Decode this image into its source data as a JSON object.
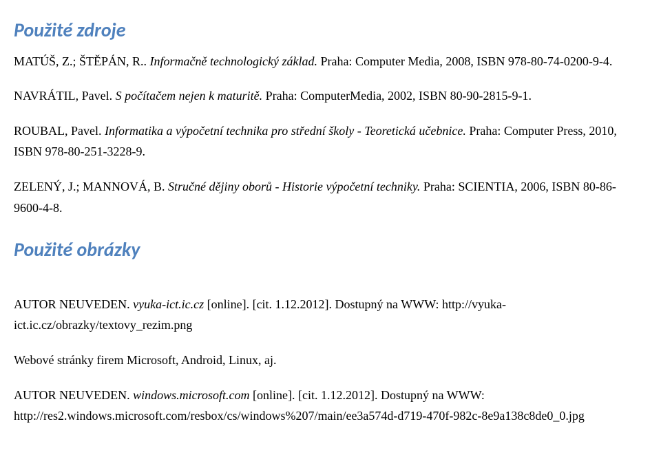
{
  "section1": {
    "heading": "Použité zdroje",
    "refs": [
      {
        "prefix": "MATÚŠ, Z.; ŠTĚPÁN, R.. ",
        "title": "Informačně technologický základ.",
        "suffix": " Praha: Computer Media, 2008, ISBN 978-80-74-0200-9-4."
      },
      {
        "prefix": "NAVRÁTIL, Pavel. ",
        "title": "S počítačem nejen k maturitě.",
        "suffix": " Praha: ComputerMedia, 2002, ISBN 80-90-2815-9-1."
      },
      {
        "prefix": "ROUBAL, Pavel. ",
        "title": "Informatika a výpočetní technika pro střední školy - Teoretická učebnice.",
        "suffix": " Praha: Computer Press, 2010, ISBN 978-80-251-3228-9."
      },
      {
        "prefix": "ZELENÝ, J.; MANNOVÁ, B. ",
        "title": "Stručné dějiny oborů - Historie výpočetní techniky.",
        "suffix": " Praha: SCIENTIA, 2006, ISBN 80-86-9600-4-8."
      }
    ]
  },
  "section2": {
    "heading": "Použité obrázky",
    "ref1": {
      "prefix": "AUTOR NEUVEDEN. ",
      "title": "vyuka-ict.ic.cz",
      "suffix": " [online]. [cit. 1.12.2012]. Dostupný na WWW: http://vyuka-ict.ic.cz/obrazky/textovy_rezim.png"
    },
    "ref2": "Webové stránky firem Microsoft, Android, Linux, aj.",
    "ref3": {
      "prefix": "AUTOR NEUVEDEN. ",
      "title": "windows.microsoft.com",
      "suffix": " [online]. [cit. 1.12.2012]. Dostupný na WWW: http://res2.windows.microsoft.com/resbox/cs/windows%207/main/ee3a574d-d719-470f-982c-8e9a138c8de0_0.jpg"
    }
  }
}
